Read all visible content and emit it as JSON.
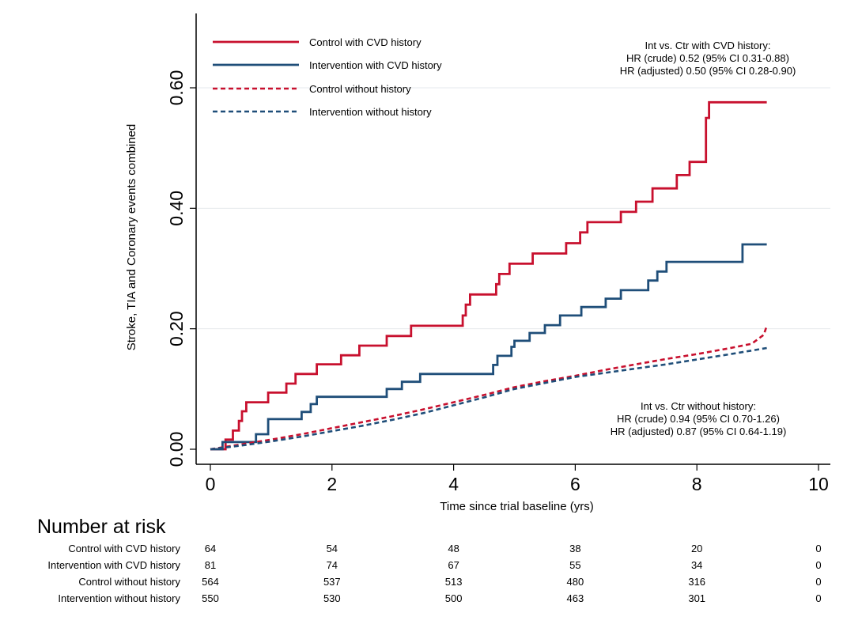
{
  "chart_data": {
    "type": "line",
    "title": "",
    "xlabel": "Time since trial baseline (yrs)",
    "ylabel": "Stroke, TIA and Coronary events combined",
    "xlim": [
      0,
      10
    ],
    "ylim": [
      0,
      0.7
    ],
    "x_ticks": [
      {
        "value": 0,
        "label": "0"
      },
      {
        "value": 2,
        "label": "2"
      },
      {
        "value": 4,
        "label": "4"
      },
      {
        "value": 6,
        "label": "6"
      },
      {
        "value": 8,
        "label": "8"
      },
      {
        "value": 10,
        "label": "10"
      }
    ],
    "y_ticks": [
      {
        "value": 0,
        "label": "0.00"
      },
      {
        "value": 0.2,
        "label": "0.20"
      },
      {
        "value": 0.4,
        "label": "0.40"
      },
      {
        "value": 0.6,
        "label": "0.60"
      }
    ],
    "grid": "horizontal",
    "legend_placement": "top-left",
    "series": [
      {
        "name": "Control with CVD history",
        "color": "#c8102e",
        "style": "solid",
        "step": true,
        "points": [
          [
            0,
            0
          ],
          [
            0.25,
            0
          ],
          [
            0.25,
            0.016
          ],
          [
            0.37,
            0.016
          ],
          [
            0.37,
            0.031
          ],
          [
            0.47,
            0.031
          ],
          [
            0.47,
            0.047
          ],
          [
            0.52,
            0.047
          ],
          [
            0.52,
            0.063
          ],
          [
            0.59,
            0.063
          ],
          [
            0.59,
            0.078
          ],
          [
            0.95,
            0.078
          ],
          [
            0.95,
            0.094
          ],
          [
            1.25,
            0.094
          ],
          [
            1.25,
            0.109
          ],
          [
            1.4,
            0.109
          ],
          [
            1.4,
            0.125
          ],
          [
            1.75,
            0.125
          ],
          [
            1.75,
            0.141
          ],
          [
            2.15,
            0.141
          ],
          [
            2.15,
            0.156
          ],
          [
            2.45,
            0.156
          ],
          [
            2.45,
            0.172
          ],
          [
            2.9,
            0.172
          ],
          [
            2.9,
            0.188
          ],
          [
            3.3,
            0.188
          ],
          [
            3.3,
            0.205
          ],
          [
            4.15,
            0.205
          ],
          [
            4.15,
            0.222
          ],
          [
            4.2,
            0.222
          ],
          [
            4.2,
            0.24
          ],
          [
            4.27,
            0.24
          ],
          [
            4.27,
            0.257
          ],
          [
            4.7,
            0.257
          ],
          [
            4.7,
            0.274
          ],
          [
            4.75,
            0.274
          ],
          [
            4.75,
            0.291
          ],
          [
            4.92,
            0.291
          ],
          [
            4.92,
            0.308
          ],
          [
            5.3,
            0.308
          ],
          [
            5.3,
            0.325
          ],
          [
            5.85,
            0.325
          ],
          [
            5.85,
            0.342
          ],
          [
            6.08,
            0.342
          ],
          [
            6.08,
            0.36
          ],
          [
            6.2,
            0.36
          ],
          [
            6.2,
            0.377
          ],
          [
            6.75,
            0.377
          ],
          [
            6.75,
            0.394
          ],
          [
            7.0,
            0.394
          ],
          [
            7.0,
            0.411
          ],
          [
            7.27,
            0.411
          ],
          [
            7.27,
            0.433
          ],
          [
            7.67,
            0.433
          ],
          [
            7.67,
            0.455
          ],
          [
            7.88,
            0.455
          ],
          [
            7.88,
            0.477
          ],
          [
            8.15,
            0.477
          ],
          [
            8.15,
            0.55
          ],
          [
            8.2,
            0.55
          ],
          [
            8.2,
            0.576
          ],
          [
            9.15,
            0.576
          ]
        ]
      },
      {
        "name": "Intervention with CVD history",
        "color": "#1f4e79",
        "style": "solid",
        "step": true,
        "points": [
          [
            0,
            0
          ],
          [
            0.2,
            0
          ],
          [
            0.2,
            0.012
          ],
          [
            0.75,
            0.012
          ],
          [
            0.75,
            0.025
          ],
          [
            0.95,
            0.025
          ],
          [
            0.95,
            0.05
          ],
          [
            1.5,
            0.05
          ],
          [
            1.5,
            0.062
          ],
          [
            1.65,
            0.062
          ],
          [
            1.65,
            0.075
          ],
          [
            1.75,
            0.075
          ],
          [
            1.75,
            0.087
          ],
          [
            2.9,
            0.087
          ],
          [
            2.9,
            0.1
          ],
          [
            3.15,
            0.1
          ],
          [
            3.15,
            0.112
          ],
          [
            3.45,
            0.112
          ],
          [
            3.45,
            0.125
          ],
          [
            4.65,
            0.125
          ],
          [
            4.65,
            0.14
          ],
          [
            4.72,
            0.14
          ],
          [
            4.72,
            0.155
          ],
          [
            4.95,
            0.155
          ],
          [
            4.95,
            0.17
          ],
          [
            5.0,
            0.17
          ],
          [
            5.0,
            0.18
          ],
          [
            5.25,
            0.18
          ],
          [
            5.25,
            0.193
          ],
          [
            5.5,
            0.193
          ],
          [
            5.5,
            0.206
          ],
          [
            5.75,
            0.206
          ],
          [
            5.75,
            0.222
          ],
          [
            6.1,
            0.222
          ],
          [
            6.1,
            0.236
          ],
          [
            6.5,
            0.236
          ],
          [
            6.5,
            0.25
          ],
          [
            6.75,
            0.25
          ],
          [
            6.75,
            0.264
          ],
          [
            7.2,
            0.264
          ],
          [
            7.2,
            0.28
          ],
          [
            7.35,
            0.28
          ],
          [
            7.35,
            0.295
          ],
          [
            7.5,
            0.295
          ],
          [
            7.5,
            0.311
          ],
          [
            8.75,
            0.311
          ],
          [
            8.75,
            0.34
          ],
          [
            9.15,
            0.34
          ]
        ]
      },
      {
        "name": "Control without history",
        "color": "#c8102e",
        "style": "dashed",
        "step": false,
        "points": [
          [
            0,
            0
          ],
          [
            0.5,
            0.008
          ],
          [
            1,
            0.016
          ],
          [
            1.5,
            0.025
          ],
          [
            2,
            0.035
          ],
          [
            2.5,
            0.045
          ],
          [
            3,
            0.055
          ],
          [
            3.5,
            0.066
          ],
          [
            4,
            0.078
          ],
          [
            4.5,
            0.09
          ],
          [
            5,
            0.103
          ],
          [
            5.5,
            0.113
          ],
          [
            6,
            0.122
          ],
          [
            6.5,
            0.132
          ],
          [
            7,
            0.141
          ],
          [
            7.5,
            0.15
          ],
          [
            8,
            0.158
          ],
          [
            8.5,
            0.167
          ],
          [
            8.9,
            0.175
          ],
          [
            9.1,
            0.19
          ],
          [
            9.15,
            0.205
          ]
        ]
      },
      {
        "name": "Intervention without history",
        "color": "#1f4e79",
        "style": "dashed",
        "step": false,
        "points": [
          [
            0,
            0
          ],
          [
            0.5,
            0.006
          ],
          [
            1,
            0.013
          ],
          [
            1.5,
            0.021
          ],
          [
            2,
            0.03
          ],
          [
            2.5,
            0.039
          ],
          [
            3,
            0.049
          ],
          [
            3.5,
            0.06
          ],
          [
            4,
            0.073
          ],
          [
            4.5,
            0.086
          ],
          [
            5,
            0.1
          ],
          [
            5.5,
            0.11
          ],
          [
            6,
            0.12
          ],
          [
            6.5,
            0.127
          ],
          [
            7,
            0.134
          ],
          [
            7.5,
            0.141
          ],
          [
            8,
            0.149
          ],
          [
            8.5,
            0.157
          ],
          [
            9.15,
            0.168
          ]
        ]
      }
    ],
    "annotations": [
      {
        "lines": [
          "Int vs. Ctr with CVD history:",
          "HR (crude) 0.52 (95% CI 0.31-0.88)",
          "HR (adjusted) 0.50 (95% CI 0.28-0.90)"
        ]
      },
      {
        "lines": [
          "Int vs. Ctr without history:",
          "HR (crude) 0.94 (95% CI  0.70-1.26)",
          "HR (adjusted) 0.87 (95% CI 0.64-1.19)"
        ]
      }
    ],
    "risk_table": {
      "title": "Number at risk",
      "times": [
        0,
        2,
        4,
        6,
        8,
        10
      ],
      "rows": [
        {
          "label": "Control with CVD history",
          "values": [
            "64",
            "54",
            "48",
            "38",
            "20",
            "0"
          ]
        },
        {
          "label": "Intervention with CVD history",
          "values": [
            "81",
            "74",
            "67",
            "55",
            "34",
            "0"
          ]
        },
        {
          "label": "Control without history",
          "values": [
            "564",
            "537",
            "513",
            "480",
            "316",
            "0"
          ]
        },
        {
          "label": "Intervention without history",
          "values": [
            "550",
            "530",
            "500",
            "463",
            "301",
            "0"
          ]
        }
      ]
    }
  }
}
